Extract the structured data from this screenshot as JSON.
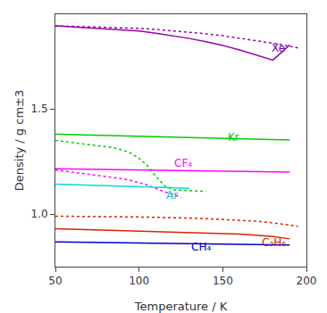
{
  "chart_data": {
    "type": "line",
    "xlabel": "Temperature / K",
    "ylabel": "Density / g cm±3",
    "xlim": [
      50,
      200
    ],
    "ylim": [
      0.75,
      1.95
    ],
    "xticks": [
      50,
      100,
      150,
      200
    ],
    "yticks": [
      {
        "value": 1.0,
        "label": "1.0"
      },
      1.5
    ],
    "grid": false,
    "series": [
      {
        "color": "#9900aa",
        "line_style": "solid",
        "x": [
          50,
          60,
          70,
          80,
          90,
          100,
          110,
          120,
          130,
          140,
          150,
          160,
          170,
          180,
          190
        ],
        "values": [
          1.895,
          1.89,
          1.885,
          1.88,
          1.875,
          1.87,
          1.86,
          1.848,
          1.835,
          1.82,
          1.802,
          1.78,
          1.757,
          1.732,
          1.804
        ]
      },
      {
        "color": "#9900aa",
        "line_style": "dotted",
        "x": [
          50,
          60,
          70,
          80,
          90,
          100,
          110,
          120,
          130,
          140,
          150,
          160,
          170,
          180,
          190,
          195
        ],
        "values": [
          1.895,
          1.893,
          1.891,
          1.889,
          1.887,
          1.883,
          1.878,
          1.872,
          1.865,
          1.857,
          1.848,
          1.837,
          1.825,
          1.812,
          1.798,
          1.79
        ]
      },
      {
        "color": "#00cc00",
        "line_style": "solid",
        "x": [
          50,
          60,
          70,
          80,
          90,
          100,
          110,
          120,
          130,
          140,
          150,
          160,
          170,
          180,
          190
        ],
        "values": [
          1.38,
          1.378,
          1.376,
          1.374,
          1.372,
          1.37,
          1.368,
          1.366,
          1.364,
          1.362,
          1.36,
          1.358,
          1.356,
          1.354,
          1.352
        ]
      },
      {
        "color": "#00cc00",
        "line_style": "dotted",
        "x": [
          50,
          55,
          60,
          70,
          80,
          85,
          90,
          95,
          100,
          105,
          110,
          115,
          120,
          130,
          140
        ],
        "values": [
          1.35,
          1.345,
          1.34,
          1.33,
          1.32,
          1.315,
          1.305,
          1.29,
          1.265,
          1.23,
          1.18,
          1.135,
          1.115,
          1.11,
          1.108
        ]
      },
      {
        "color": "#ff00ff",
        "line_style": "solid",
        "x": [
          50,
          60,
          70,
          80,
          90,
          100,
          110,
          115,
          120,
          130,
          140,
          150,
          160,
          170,
          180,
          190
        ],
        "values": [
          1.215,
          1.214,
          1.213,
          1.212,
          1.211,
          1.21,
          1.209,
          1.208,
          1.207,
          1.206,
          1.205,
          1.204,
          1.203,
          1.202,
          1.201,
          1.2
        ]
      },
      {
        "color": "#ff00ff",
        "line_style": "dotted",
        "x": [
          50,
          55,
          60,
          65,
          70,
          75,
          80,
          85,
          90,
          95,
          100,
          105,
          110,
          115,
          120,
          125
        ],
        "values": [
          1.21,
          1.205,
          1.2,
          1.195,
          1.19,
          1.185,
          1.18,
          1.175,
          1.168,
          1.16,
          1.15,
          1.138,
          1.122,
          1.106,
          1.094,
          1.08
        ]
      },
      {
        "color": "#00dddd",
        "line_style": "solid",
        "x": [
          50,
          60,
          70,
          80,
          90,
          100,
          110,
          115,
          120,
          130
        ],
        "values": [
          1.142,
          1.14,
          1.138,
          1.136,
          1.134,
          1.132,
          1.13,
          1.128,
          1.125,
          1.122
        ]
      },
      {
        "color": "#dd2200",
        "line_style": "solid",
        "x": [
          50,
          60,
          70,
          80,
          90,
          100,
          110,
          120,
          130,
          140,
          150,
          160,
          170,
          180,
          190
        ],
        "values": [
          0.93,
          0.928,
          0.926,
          0.924,
          0.922,
          0.92,
          0.918,
          0.916,
          0.914,
          0.912,
          0.91,
          0.905,
          0.9,
          0.893,
          0.882
        ]
      },
      {
        "color": "#dd2200",
        "line_style": "dotted",
        "x": [
          50,
          60,
          70,
          80,
          90,
          100,
          110,
          120,
          130,
          140,
          150,
          160,
          170,
          180,
          190,
          195
        ],
        "values": [
          0.99,
          0.99,
          0.989,
          0.988,
          0.987,
          0.986,
          0.985,
          0.983,
          0.981,
          0.978,
          0.975,
          0.971,
          0.966,
          0.958,
          0.948,
          0.942
        ]
      },
      {
        "color": "#0000cc",
        "line_style": "solid",
        "x": [
          50,
          60,
          70,
          80,
          90,
          100,
          110,
          120,
          130,
          140,
          150,
          160,
          170,
          180,
          190
        ],
        "values": [
          0.868,
          0.866,
          0.865,
          0.864,
          0.863,
          0.862,
          0.861,
          0.86,
          0.859,
          0.858,
          0.857,
          0.856,
          0.855,
          0.854,
          0.853
        ]
      }
    ],
    "annotations": [
      {
        "text": "Xe",
        "x": 178,
        "y": 1.79,
        "color": "#7700aa"
      },
      {
        "text": "Kr",
        "x": 152,
        "y": 1.365,
        "color": "#00cc00"
      },
      {
        "text": "CF₄",
        "x": 120,
        "y": 1.24,
        "color": "#ff00ff"
      },
      {
        "text": "Ar",
        "x": 115,
        "y": 1.09,
        "color": "#00cccc"
      },
      {
        "text": "C₂H₆",
        "x": 172,
        "y": 0.865,
        "color": "#cc2200"
      },
      {
        "text": "CH₄",
        "x": 130,
        "y": 0.845,
        "color": "#0000cc"
      }
    ]
  }
}
